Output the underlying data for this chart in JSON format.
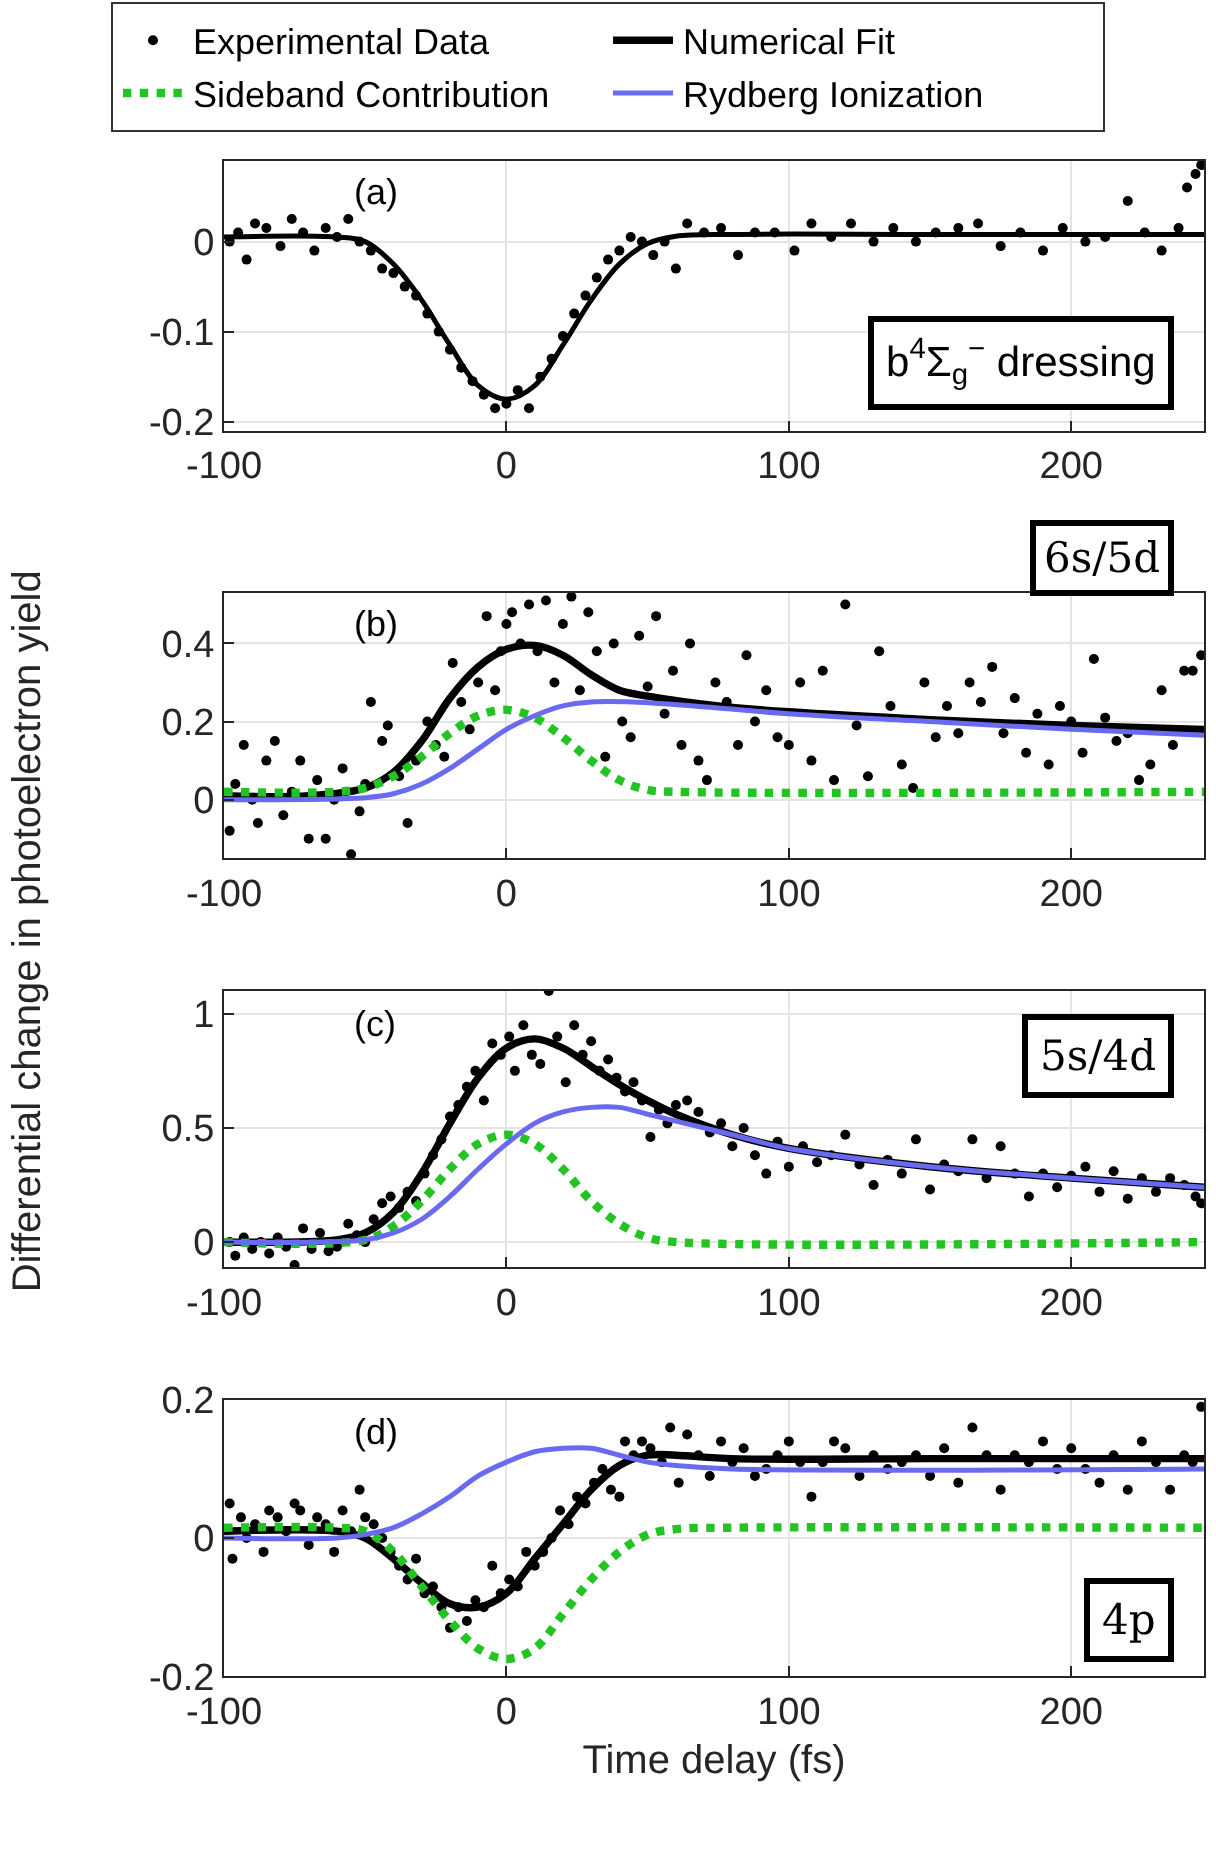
{
  "chart_data": [
    {
      "type": "scatter",
      "xlim": [
        -100,
        247
      ],
      "ylim": [
        -0.21,
        0.09
      ],
      "xticks": [
        -100,
        0,
        100,
        200
      ],
      "yticks": [
        -0.2,
        -0.1,
        0
      ],
      "grid": true,
      "annotations": [
        "(a)",
        "b$^{4}$Σ$_{g}$$^{−}$ dressing"
      ],
      "series": [
        {
          "marker": "circle",
          "color": "#000000",
          "x": [
            -98,
            -95,
            -92,
            -89,
            -85,
            -80,
            -76,
            -72,
            -68,
            -64,
            -60,
            -56,
            -52,
            -48,
            -44,
            -40,
            -36,
            -32,
            -28,
            -24,
            -20,
            -16,
            -12,
            -8,
            -4,
            0,
            4,
            8,
            12,
            16,
            20,
            24,
            28,
            32,
            36,
            40,
            44,
            48,
            52,
            56,
            60,
            64,
            70,
            76,
            82,
            88,
            95,
            102,
            108,
            115,
            122,
            130,
            137,
            145,
            152,
            160,
            167,
            175,
            182,
            190,
            197,
            205,
            212,
            220,
            226,
            232,
            238,
            241,
            244,
            246
          ],
          "values": [
            0.0,
            0.01,
            -0.02,
            0.02,
            0.015,
            -0.005,
            0.025,
            0.01,
            -0.01,
            0.015,
            0.005,
            0.025,
            0.0,
            -0.01,
            -0.03,
            -0.035,
            -0.05,
            -0.06,
            -0.08,
            -0.1,
            -0.12,
            -0.14,
            -0.155,
            -0.17,
            -0.185,
            -0.18,
            -0.165,
            -0.185,
            -0.15,
            -0.13,
            -0.105,
            -0.08,
            -0.06,
            -0.04,
            -0.02,
            -0.01,
            0.005,
            0.0,
            -0.015,
            0.0,
            -0.03,
            0.02,
            0.01,
            0.015,
            -0.015,
            0.01,
            0.01,
            -0.01,
            0.02,
            0.005,
            0.02,
            0.0,
            0.015,
            0.0,
            0.01,
            0.015,
            0.02,
            -0.005,
            0.01,
            -0.01,
            0.015,
            0.0,
            0.005,
            0.045,
            0.01,
            -0.01,
            0.015,
            0.06,
            0.075,
            0.085
          ]
        },
        {
          "type": "line",
          "color": "#000000",
          "x": [
            -100,
            -60,
            -50,
            -40,
            -30,
            -20,
            -10,
            0,
            10,
            20,
            30,
            40,
            50,
            60,
            80,
            150,
            247
          ],
          "values": [
            0.005,
            0.005,
            0.0,
            -0.025,
            -0.065,
            -0.115,
            -0.16,
            -0.175,
            -0.16,
            -0.115,
            -0.065,
            -0.025,
            -0.002,
            0.006,
            0.008,
            0.008,
            0.008
          ]
        }
      ]
    },
    {
      "type": "scatter",
      "xlim": [
        -100,
        247
      ],
      "ylim": [
        -0.15,
        0.53
      ],
      "xticks": [
        -100,
        0,
        100,
        200
      ],
      "yticks": [
        0,
        0.2,
        0.4
      ],
      "grid": true,
      "legend": "top",
      "ylabel": "Differential change in photoelectron yield",
      "annotations": [
        "(b)",
        "6s/5d"
      ],
      "series": [
        {
          "name": "Experimental Data",
          "marker": "circle",
          "color": "#000000",
          "x": [
            -98,
            -96,
            -93,
            -90,
            -88,
            -85,
            -82,
            -79,
            -76,
            -73,
            -70,
            -67,
            -64,
            -61,
            -58,
            -55,
            -52,
            -50,
            -48,
            -44,
            -42,
            -38,
            -35,
            -32,
            -28,
            -25,
            -22,
            -19,
            -16,
            -13,
            -10,
            -7,
            -4,
            -2,
            0,
            2,
            5,
            8,
            11,
            14,
            17,
            20,
            23,
            26,
            29,
            32,
            35,
            38,
            41,
            44,
            47,
            50,
            53,
            56,
            59,
            62,
            65,
            68,
            71,
            74,
            78,
            82,
            85,
            88,
            92,
            96,
            100,
            104,
            108,
            112,
            116,
            120,
            124,
            128,
            132,
            136,
            140,
            144,
            148,
            152,
            156,
            160,
            164,
            168,
            172,
            176,
            180,
            184,
            188,
            192,
            196,
            200,
            204,
            208,
            212,
            216,
            220,
            224,
            228,
            232,
            236,
            240,
            243,
            246
          ],
          "values": [
            -0.08,
            0.04,
            0.14,
            0.0,
            -0.06,
            0.1,
            0.15,
            -0.04,
            0.02,
            0.1,
            -0.1,
            0.05,
            -0.1,
            0.0,
            0.08,
            -0.14,
            -0.03,
            0.04,
            0.25,
            0.15,
            0.19,
            0.06,
            -0.06,
            0.1,
            0.2,
            0.14,
            0.11,
            0.35,
            0.25,
            0.18,
            0.3,
            0.47,
            0.28,
            0.38,
            0.45,
            0.48,
            0.4,
            0.5,
            0.38,
            0.51,
            0.3,
            0.45,
            0.52,
            0.28,
            0.48,
            0.38,
            0.11,
            0.4,
            0.2,
            0.16,
            0.42,
            0.29,
            0.47,
            0.22,
            0.33,
            0.14,
            0.4,
            0.1,
            0.05,
            0.3,
            0.25,
            0.14,
            0.37,
            0.2,
            0.28,
            0.16,
            0.14,
            0.3,
            0.1,
            0.33,
            0.05,
            0.5,
            0.19,
            0.06,
            0.38,
            0.24,
            0.09,
            0.03,
            0.3,
            0.16,
            0.24,
            0.17,
            0.3,
            0.25,
            0.34,
            0.17,
            0.26,
            0.12,
            0.22,
            0.09,
            0.24,
            0.2,
            0.12,
            0.36,
            0.21,
            0.15,
            0.17,
            0.05,
            0.09,
            0.28,
            0.14,
            0.33,
            0.33,
            0.37
          ]
        },
        {
          "name": "Numerical Fit",
          "type": "line",
          "color": "#000000",
          "x": [
            -100,
            -70,
            -50,
            -40,
            -30,
            -20,
            -10,
            0,
            10,
            20,
            30,
            40,
            50,
            75,
            100,
            150,
            200,
            247
          ],
          "values": [
            0.01,
            0.01,
            0.03,
            0.07,
            0.15,
            0.26,
            0.34,
            0.385,
            0.395,
            0.37,
            0.32,
            0.28,
            0.265,
            0.24,
            0.225,
            0.205,
            0.19,
            0.18
          ]
        },
        {
          "name": "Sideband Contribution",
          "type": "line",
          "line_style": "dotted",
          "color": "#22c322",
          "x": [
            -100,
            -60,
            -50,
            -40,
            -30,
            -20,
            -10,
            0,
            10,
            20,
            30,
            40,
            50,
            60,
            247
          ],
          "values": [
            0.02,
            0.02,
            0.03,
            0.06,
            0.11,
            0.17,
            0.215,
            0.23,
            0.21,
            0.16,
            0.1,
            0.05,
            0.025,
            0.02,
            0.02
          ]
        },
        {
          "name": "Rydberg Ionization",
          "type": "line",
          "color": "#6a6af0",
          "x": [
            -100,
            -50,
            -40,
            -30,
            -20,
            -10,
            0,
            10,
            20,
            30,
            45,
            75,
            100,
            150,
            200,
            247
          ],
          "values": [
            0.0,
            0.005,
            0.015,
            0.04,
            0.08,
            0.13,
            0.18,
            0.215,
            0.24,
            0.25,
            0.25,
            0.235,
            0.22,
            0.2,
            0.18,
            0.165
          ]
        }
      ]
    },
    {
      "type": "scatter",
      "xlim": [
        -100,
        247
      ],
      "ylim": [
        -0.11,
        1.1
      ],
      "xticks": [
        -100,
        0,
        100,
        200
      ],
      "yticks": [
        0,
        0.5,
        1
      ],
      "grid": true,
      "annotations": [
        "(c)",
        "5s/4d"
      ],
      "series": [
        {
          "marker": "circle",
          "color": "#000000",
          "x": [
            -98,
            -96,
            -93,
            -90,
            -87,
            -84,
            -81,
            -78,
            -75,
            -72,
            -69,
            -66,
            -63,
            -60,
            -56,
            -53,
            -50,
            -47,
            -44,
            -41,
            -38,
            -35,
            -32,
            -29,
            -26,
            -23,
            -20,
            -17,
            -14,
            -11,
            -8,
            -5,
            -2,
            1,
            3,
            6,
            9,
            12,
            15,
            18,
            21,
            24,
            27,
            30,
            33,
            36,
            39,
            42,
            45,
            48,
            51,
            54,
            57,
            60,
            64,
            68,
            72,
            76,
            80,
            84,
            88,
            92,
            96,
            100,
            105,
            110,
            115,
            120,
            125,
            130,
            135,
            140,
            145,
            150,
            155,
            160,
            165,
            170,
            175,
            180,
            185,
            190,
            195,
            200,
            205,
            210,
            215,
            220,
            225,
            230,
            235,
            240,
            244,
            246
          ],
          "values": [
            0.0,
            -0.06,
            0.02,
            -0.03,
            0.0,
            -0.05,
            0.02,
            -0.02,
            -0.1,
            0.06,
            -0.03,
            0.04,
            -0.04,
            -0.02,
            0.08,
            0.03,
            0.0,
            0.1,
            0.17,
            0.2,
            0.15,
            0.22,
            0.18,
            0.3,
            0.38,
            0.45,
            0.55,
            0.6,
            0.68,
            0.75,
            0.62,
            0.87,
            0.82,
            0.9,
            0.75,
            0.95,
            0.82,
            0.78,
            1.1,
            0.9,
            0.7,
            0.95,
            0.82,
            0.88,
            0.75,
            0.8,
            0.72,
            0.66,
            0.7,
            0.62,
            0.46,
            0.58,
            0.52,
            0.6,
            0.62,
            0.57,
            0.48,
            0.52,
            0.42,
            0.5,
            0.38,
            0.3,
            0.44,
            0.33,
            0.42,
            0.35,
            0.38,
            0.47,
            0.34,
            0.25,
            0.36,
            0.3,
            0.45,
            0.23,
            0.34,
            0.31,
            0.45,
            0.28,
            0.42,
            0.3,
            0.2,
            0.3,
            0.24,
            0.29,
            0.33,
            0.22,
            0.31,
            0.19,
            0.28,
            0.22,
            0.28,
            0.25,
            0.2,
            0.17
          ]
        },
        {
          "type": "line",
          "color": "#000000",
          "x": [
            -100,
            -60,
            -50,
            -40,
            -30,
            -20,
            -10,
            0,
            10,
            20,
            30,
            40,
            50,
            60,
            80,
            100,
            150,
            200,
            247
          ],
          "values": [
            0.0,
            0.01,
            0.04,
            0.13,
            0.3,
            0.52,
            0.72,
            0.85,
            0.89,
            0.85,
            0.77,
            0.69,
            0.62,
            0.56,
            0.47,
            0.41,
            0.33,
            0.28,
            0.24
          ]
        },
        {
          "type": "line",
          "line_style": "dotted",
          "color": "#22c322",
          "x": [
            -100,
            -50,
            -40,
            -30,
            -20,
            -10,
            0,
            10,
            20,
            30,
            40,
            50,
            60,
            247
          ],
          "values": [
            0.0,
            0.01,
            0.07,
            0.18,
            0.32,
            0.43,
            0.47,
            0.43,
            0.32,
            0.18,
            0.08,
            0.02,
            0.0,
            0.0
          ]
        },
        {
          "type": "line",
          "color": "#6a6af0",
          "x": [
            -100,
            -50,
            -40,
            -30,
            -20,
            -10,
            0,
            10,
            20,
            30,
            40,
            50,
            60,
            80,
            100,
            150,
            200,
            247
          ],
          "values": [
            0.0,
            0.01,
            0.04,
            0.1,
            0.2,
            0.32,
            0.43,
            0.52,
            0.57,
            0.59,
            0.59,
            0.56,
            0.53,
            0.47,
            0.41,
            0.33,
            0.28,
            0.24
          ]
        }
      ]
    },
    {
      "type": "scatter",
      "xlim": [
        -100,
        247
      ],
      "ylim": [
        -0.2,
        0.2
      ],
      "xticks": [
        -100,
        0,
        100,
        200
      ],
      "yticks": [
        -0.2,
        0,
        0.2
      ],
      "grid": true,
      "xlabel": "Time delay (fs)",
      "annotations": [
        "(d)",
        "4p"
      ],
      "series": [
        {
          "marker": "circle",
          "color": "#000000",
          "x": [
            -98,
            -97,
            -94,
            -92,
            -89,
            -86,
            -84,
            -81,
            -78,
            -75,
            -73,
            -70,
            -67,
            -64,
            -61,
            -58,
            -55,
            -52,
            -50,
            -47,
            -44,
            -41,
            -38,
            -35,
            -32,
            -29,
            -26,
            -23,
            -20,
            -17,
            -14,
            -11,
            -8,
            -5,
            -2,
            1,
            4,
            7,
            10,
            13,
            16,
            19,
            22,
            25,
            28,
            31,
            34,
            37,
            40,
            42,
            45,
            48,
            51,
            55,
            58,
            61,
            64,
            68,
            72,
            76,
            80,
            84,
            88,
            92,
            96,
            100,
            104,
            108,
            112,
            116,
            120,
            125,
            130,
            135,
            140,
            145,
            150,
            155,
            160,
            165,
            170,
            175,
            180,
            185,
            190,
            195,
            200,
            205,
            210,
            215,
            220,
            225,
            230,
            235,
            240,
            243,
            246
          ],
          "values": [
            0.05,
            -0.03,
            0.03,
            0.0,
            0.02,
            -0.02,
            0.04,
            0.03,
            0.01,
            0.05,
            0.04,
            -0.01,
            0.03,
            0.02,
            -0.02,
            0.04,
            0.01,
            0.07,
            0.03,
            0.02,
            0.0,
            -0.02,
            -0.04,
            -0.06,
            -0.03,
            -0.08,
            -0.07,
            -0.1,
            -0.13,
            -0.1,
            -0.12,
            -0.09,
            -0.1,
            -0.04,
            -0.08,
            -0.06,
            -0.07,
            -0.02,
            -0.04,
            -0.02,
            0.0,
            0.04,
            0.02,
            0.06,
            0.05,
            0.08,
            0.1,
            0.07,
            0.06,
            0.14,
            0.12,
            0.14,
            0.13,
            0.11,
            0.16,
            0.08,
            0.15,
            0.12,
            0.09,
            0.14,
            0.11,
            0.13,
            0.09,
            0.1,
            0.12,
            0.14,
            0.11,
            0.06,
            0.11,
            0.14,
            0.13,
            0.09,
            0.12,
            0.1,
            0.11,
            0.12,
            0.09,
            0.13,
            0.08,
            0.16,
            0.12,
            0.07,
            0.12,
            0.11,
            0.14,
            0.1,
            0.13,
            0.1,
            0.08,
            0.12,
            0.07,
            0.14,
            0.11,
            0.07,
            0.12,
            0.11,
            0.19
          ]
        },
        {
          "type": "line",
          "color": "#000000",
          "x": [
            -100,
            -60,
            -50,
            -40,
            -30,
            -20,
            -10,
            0,
            10,
            20,
            30,
            40,
            50,
            60,
            80,
            150,
            247
          ],
          "values": [
            0.01,
            0.01,
            0.0,
            -0.03,
            -0.065,
            -0.095,
            -0.1,
            -0.08,
            -0.03,
            0.02,
            0.07,
            0.105,
            0.12,
            0.12,
            0.115,
            0.115,
            0.115
          ]
        },
        {
          "type": "line",
          "line_style": "dotted",
          "color": "#22c322",
          "x": [
            -100,
            -60,
            -50,
            -40,
            -30,
            -20,
            -10,
            0,
            10,
            20,
            30,
            40,
            50,
            60,
            80,
            247
          ],
          "values": [
            0.015,
            0.015,
            0.01,
            -0.02,
            -0.07,
            -0.12,
            -0.16,
            -0.175,
            -0.16,
            -0.11,
            -0.06,
            -0.02,
            0.005,
            0.013,
            0.015,
            0.015
          ]
        },
        {
          "type": "line",
          "color": "#6a6af0",
          "x": [
            -100,
            -60,
            -50,
            -40,
            -30,
            -20,
            -10,
            0,
            10,
            20,
            30,
            40,
            50,
            60,
            80,
            247
          ],
          "values": [
            0.0,
            0.0,
            0.005,
            0.015,
            0.035,
            0.06,
            0.09,
            0.11,
            0.125,
            0.13,
            0.13,
            0.12,
            0.11,
            0.105,
            0.1,
            0.1
          ]
        }
      ]
    }
  ]
}
